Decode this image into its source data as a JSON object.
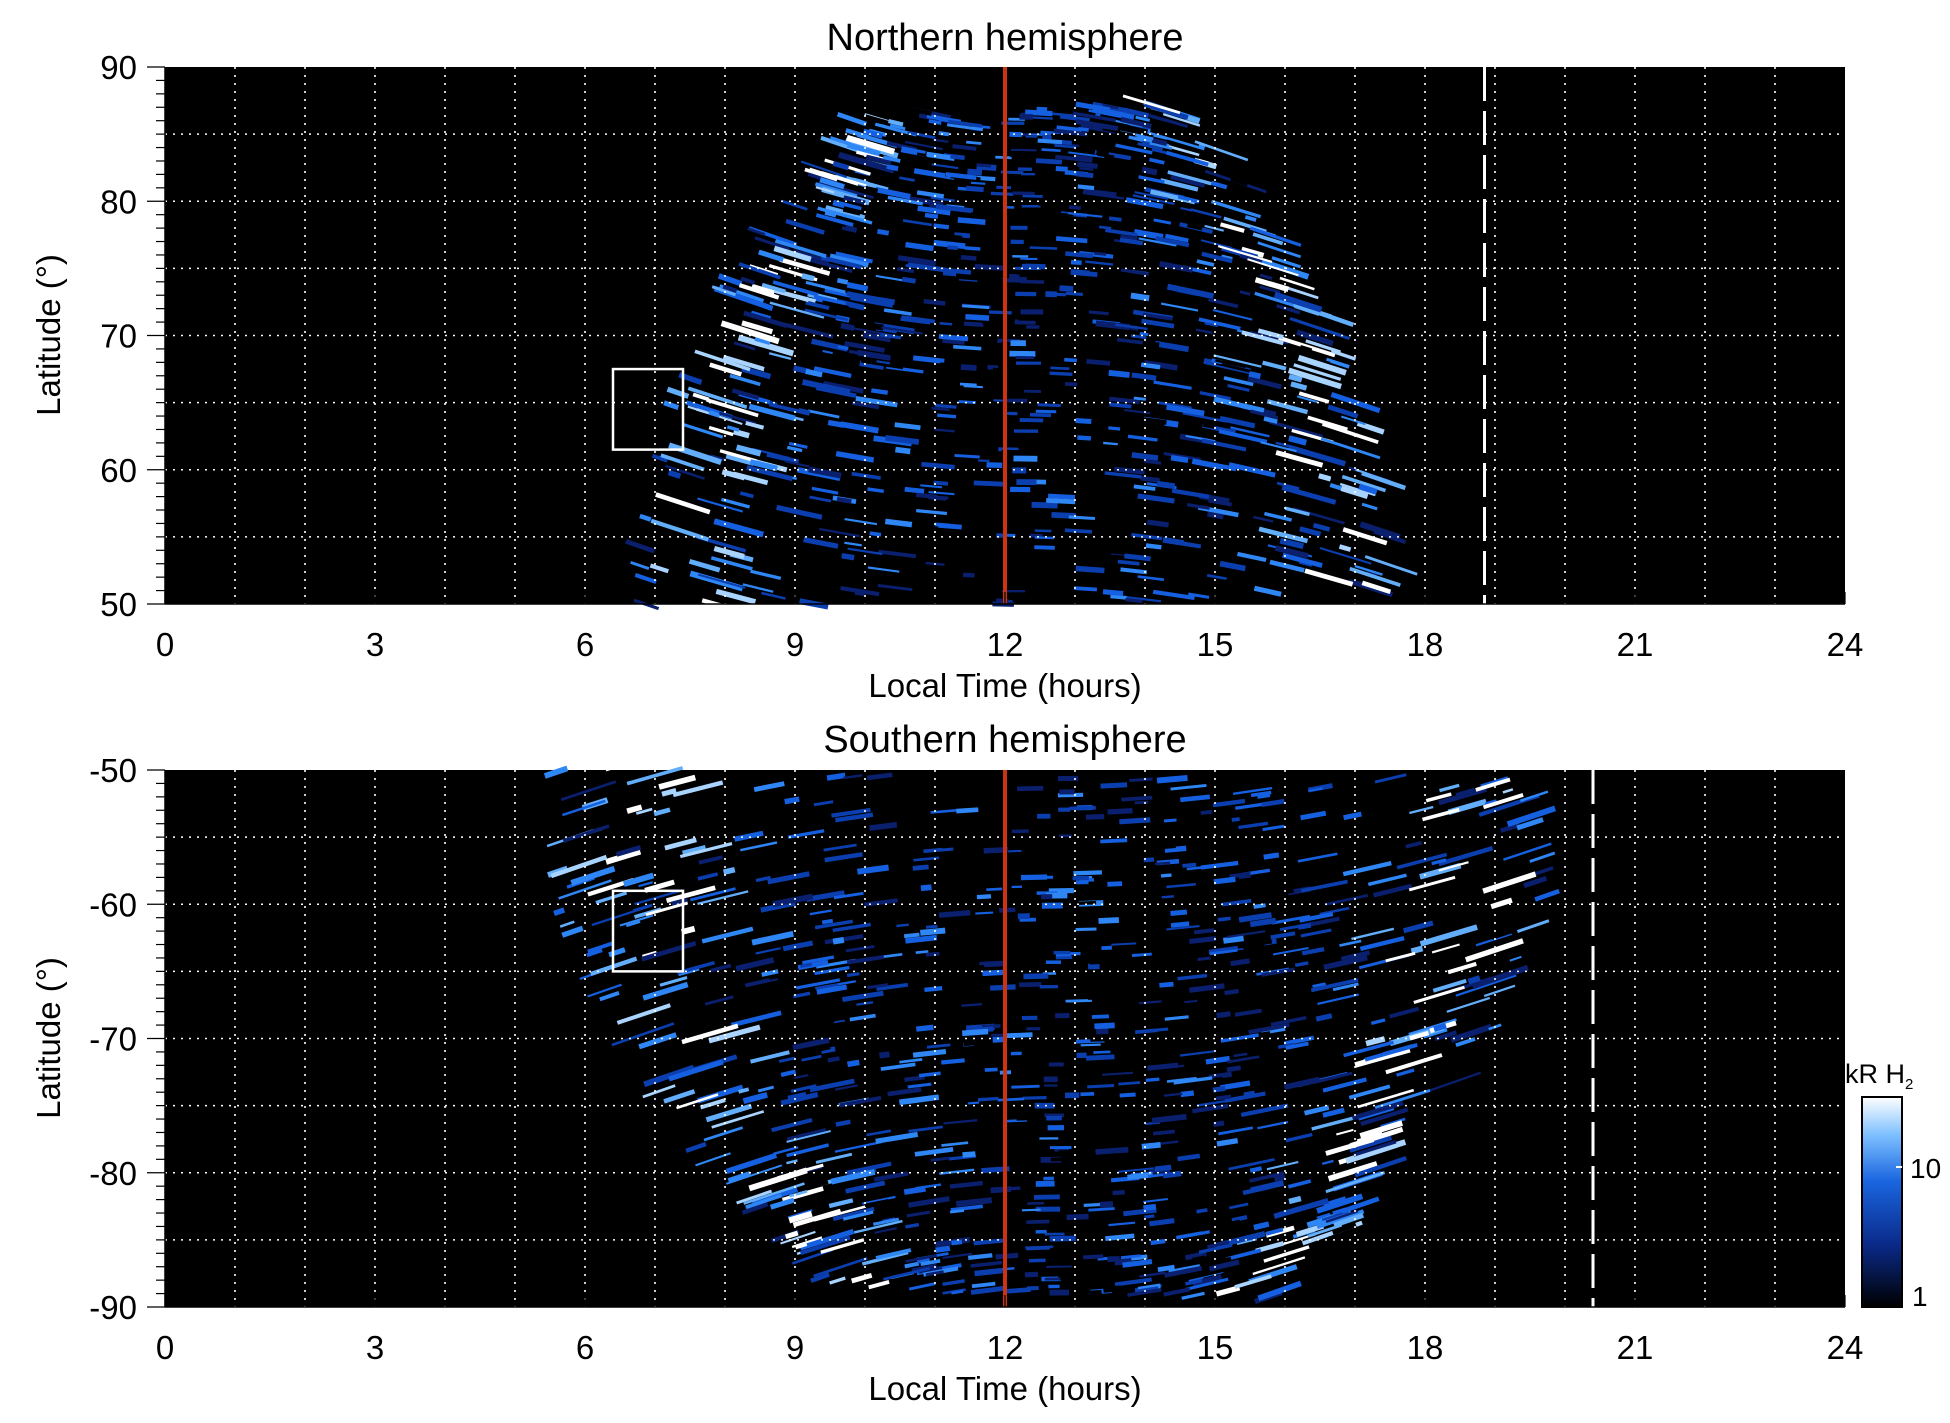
{
  "chart_data": [
    {
      "type": "heatmap",
      "title": "Northern hemisphere",
      "xlabel": "Local Time (hours)",
      "ylabel": "Latitude (°)",
      "xlim": [
        0,
        24
      ],
      "ylim": [
        50,
        90
      ],
      "xticks": [
        "0",
        "3",
        "6",
        "9",
        "12",
        "15",
        "18",
        "21",
        "24"
      ],
      "yticks": [
        "90",
        "80",
        "70",
        "60",
        "50"
      ],
      "x_grid_minor_step": 1,
      "y_grid_step": 5,
      "grid": true,
      "noon_line_lt": 12,
      "noon_line_color": "#cc3311",
      "dashed_line_lt": 18.85,
      "box": {
        "lt": [
          6.4,
          7.4
        ],
        "lat": [
          61.5,
          67.5
        ]
      },
      "emission_extent": {
        "lt": [
          6.5,
          18.0
        ],
        "lat_max": 87
      }
    },
    {
      "type": "heatmap",
      "title": "Southern hemisphere",
      "xlabel": "Local Time (hours)",
      "ylabel": "Latitude (°)",
      "xlim": [
        0,
        24
      ],
      "ylim": [
        -90,
        -50
      ],
      "xticks": [
        "0",
        "3",
        "6",
        "9",
        "12",
        "15",
        "18",
        "21",
        "24"
      ],
      "yticks": [
        "-50",
        "-60",
        "-70",
        "-80",
        "-90"
      ],
      "x_grid_minor_step": 1,
      "y_grid_step": 5,
      "grid": true,
      "noon_line_lt": 12,
      "noon_line_color": "#cc3311",
      "dashed_line_lt": 20.4,
      "box": {
        "lt": [
          6.4,
          7.4
        ],
        "lat": [
          -65,
          -59
        ]
      },
      "emission_extent": {
        "lt": [
          5.2,
          20.2
        ],
        "lat_min": -89
      }
    }
  ],
  "colorbar": {
    "label_main": "kR H",
    "label_sub": "2",
    "scale": "log",
    "range": [
      1,
      30
    ],
    "ticks": [
      "10",
      "1"
    ],
    "colors": [
      "#000000",
      "#0a2a8a",
      "#1a66e0",
      "#7ec0ff",
      "#ffffff"
    ]
  }
}
